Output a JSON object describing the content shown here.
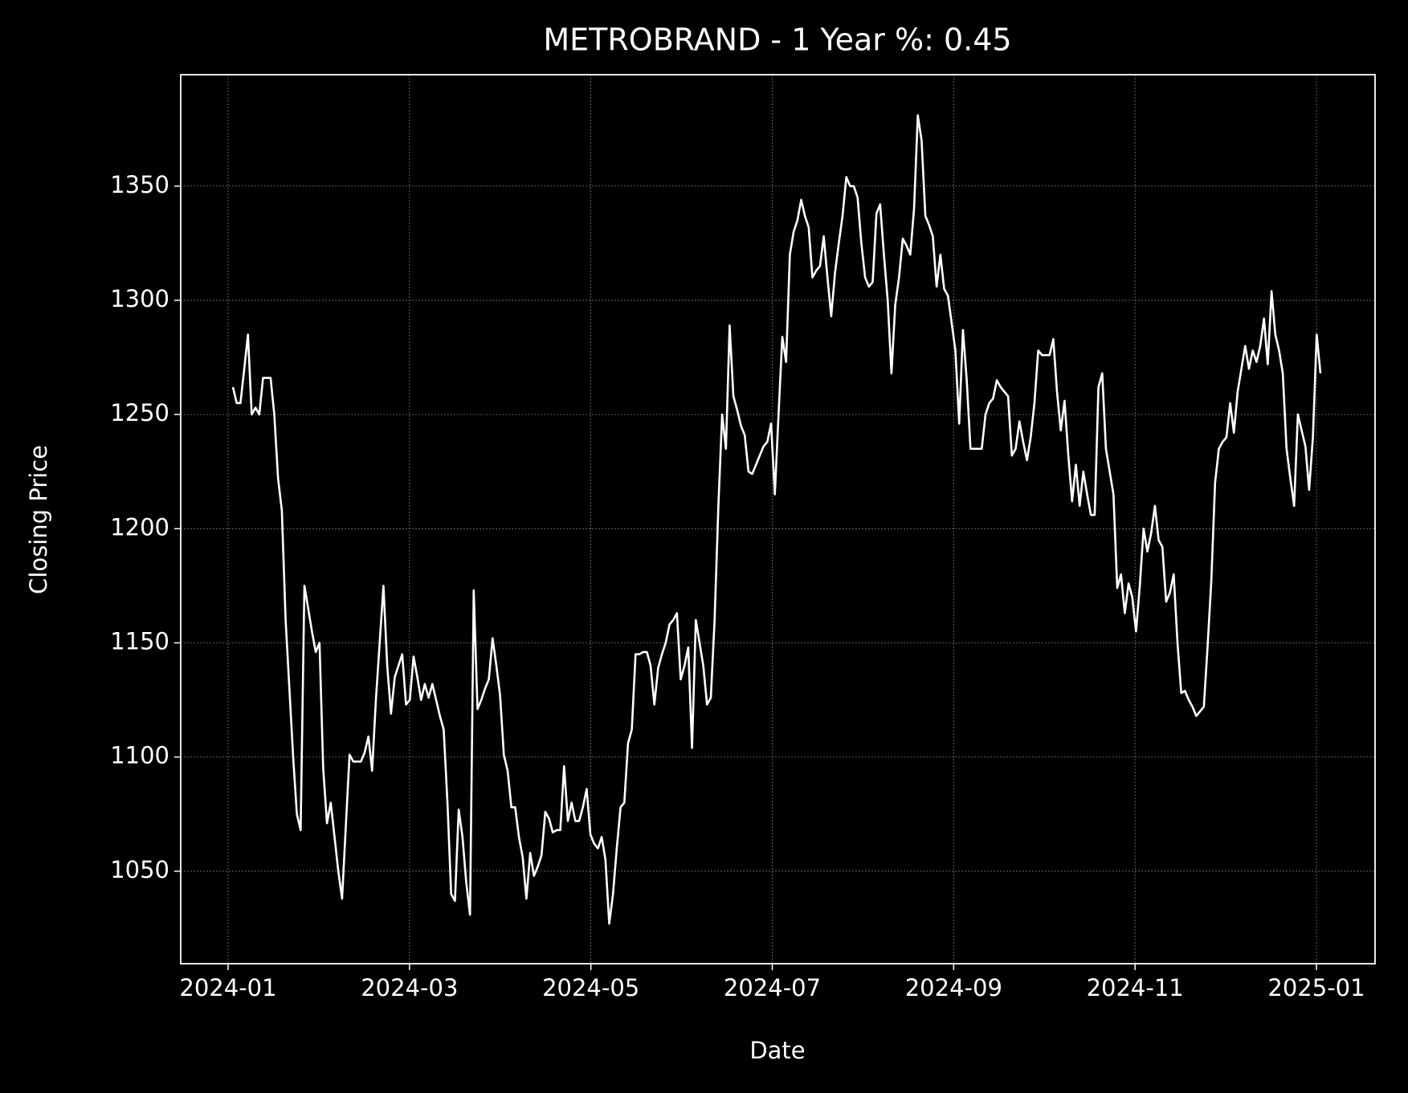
{
  "chart_data": {
    "type": "line",
    "title": "METROBRAND - 1 Year %: 0.45",
    "x_label": "Date",
    "y_label": "Closing Price",
    "color": "#ffffff",
    "grid": true,
    "ylim": [
      1009.5,
      1398.8
    ],
    "yticks": [
      1050,
      1100,
      1150,
      1200,
      1250,
      1300,
      1350
    ],
    "xticks": [
      "2024-01",
      "2024-03",
      "2024-05",
      "2024-07",
      "2024-09",
      "2024-11",
      "2025-01"
    ],
    "values": [
      1262,
      1255,
      1255,
      1270,
      1285,
      1250,
      1253,
      1250,
      1266,
      1266,
      1266,
      1250,
      1222,
      1208,
      1160,
      1130,
      1100,
      1075,
      1068,
      1175,
      1165,
      1155,
      1146,
      1150,
      1095,
      1071,
      1080,
      1065,
      1050,
      1038,
      1070,
      1101,
      1098,
      1098,
      1098,
      1102,
      1109,
      1094,
      1125,
      1150,
      1175,
      1140,
      1119,
      1135,
      1140,
      1145,
      1123,
      1125,
      1144,
      1135,
      1125,
      1132,
      1126,
      1132,
      1125,
      1118,
      1112,
      1080,
      1040,
      1037,
      1077,
      1065,
      1045,
      1031,
      1173,
      1121,
      1125,
      1130,
      1134,
      1152,
      1140,
      1127,
      1101,
      1094,
      1078,
      1078,
      1065,
      1056,
      1038,
      1058,
      1048,
      1052,
      1057,
      1076,
      1073,
      1067,
      1068,
      1068,
      1096,
      1072,
      1080,
      1072,
      1072,
      1078,
      1086,
      1066,
      1062,
      1060,
      1065,
      1055,
      1027,
      1040,
      1060,
      1078,
      1080,
      1106,
      1112,
      1145,
      1145,
      1146,
      1146,
      1140,
      1123,
      1139,
      1145,
      1150,
      1158,
      1160,
      1163,
      1134,
      1140,
      1148,
      1104,
      1160,
      1150,
      1140,
      1123,
      1126,
      1160,
      1210,
      1250,
      1235,
      1289,
      1258,
      1252,
      1245,
      1241,
      1225,
      1224,
      1228,
      1232,
      1236,
      1238,
      1246,
      1215,
      1250,
      1284,
      1273,
      1320,
      1330,
      1335,
      1344,
      1337,
      1332,
      1310,
      1313,
      1315,
      1328,
      1310,
      1293,
      1312,
      1325,
      1337,
      1354,
      1350,
      1350,
      1345,
      1325,
      1310,
      1306,
      1308,
      1338,
      1342,
      1320,
      1300,
      1268,
      1298,
      1310,
      1327,
      1324,
      1320,
      1340,
      1381,
      1370,
      1337,
      1333,
      1328,
      1306,
      1320,
      1305,
      1302,
      1290,
      1278,
      1246,
      1287,
      1265,
      1235,
      1235,
      1235,
      1235,
      1250,
      1255,
      1257,
      1265,
      1262,
      1260,
      1258,
      1232,
      1235,
      1247,
      1238,
      1230,
      1240,
      1255,
      1278,
      1276,
      1276,
      1276,
      1283,
      1260,
      1243,
      1256,
      1232,
      1212,
      1228,
      1210,
      1225,
      1215,
      1206,
      1206,
      1262,
      1268,
      1235,
      1225,
      1215,
      1174,
      1180,
      1163,
      1176,
      1170,
      1155,
      1175,
      1200,
      1190,
      1198,
      1210,
      1195,
      1192,
      1168,
      1172,
      1180,
      1150,
      1128,
      1129,
      1125,
      1122,
      1118,
      1120,
      1122,
      1148,
      1177,
      1220,
      1235,
      1238,
      1240,
      1255,
      1242,
      1260,
      1270,
      1280,
      1270,
      1278,
      1273,
      1280,
      1292,
      1272,
      1304,
      1285,
      1278,
      1268,
      1235,
      1222,
      1210,
      1250,
      1243,
      1236,
      1217,
      1240,
      1285,
      1268
    ]
  }
}
